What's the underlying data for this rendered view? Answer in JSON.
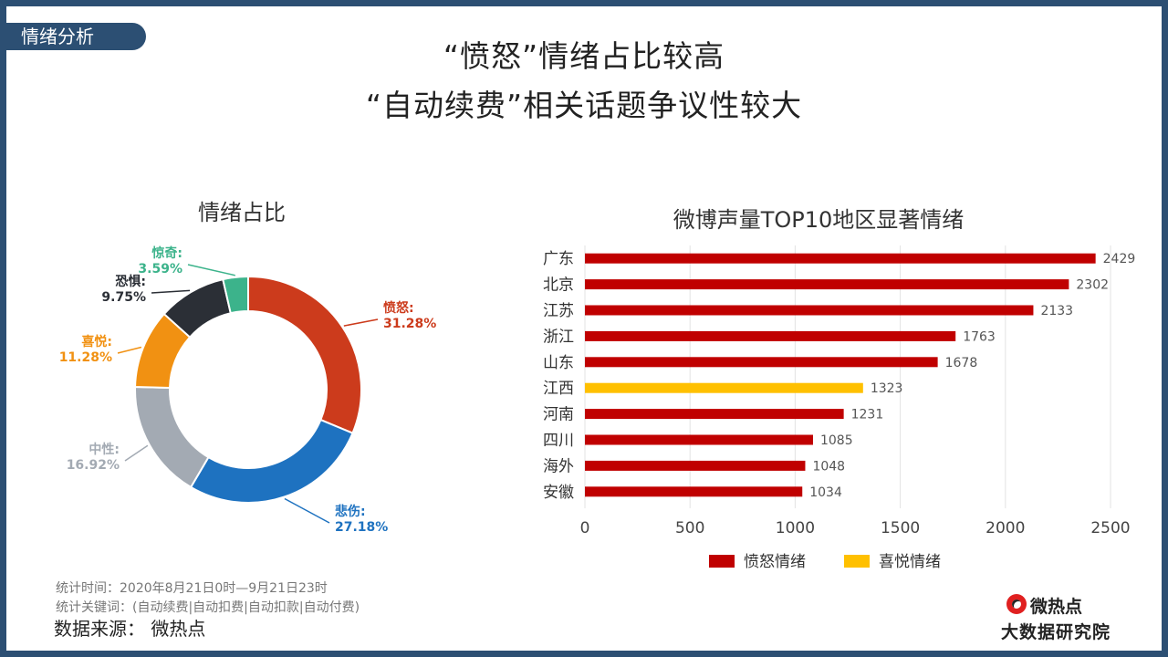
{
  "section_tag": "情绪分析",
  "headline": {
    "line1": "“愤怒”情绪占比较高",
    "line2": "“自动续费”相关话题争议性较大"
  },
  "chart_data": [
    {
      "type": "pie",
      "title": "情绪占比",
      "slices": [
        {
          "label": "愤怒:",
          "value": 31.28,
          "pct": "31.28%",
          "color": "#cc3b1c"
        },
        {
          "label": "悲伤:",
          "value": 27.18,
          "pct": "27.18%",
          "color": "#1e72c0"
        },
        {
          "label": "中性:",
          "value": 16.92,
          "pct": "16.92%",
          "color": "#a3aab3"
        },
        {
          "label": "喜悦:",
          "value": 11.28,
          "pct": "11.28%",
          "color": "#f19112"
        },
        {
          "label": "恐惧:",
          "value": 9.75,
          "pct": "9.75%",
          "color": "#2b2f36"
        },
        {
          "label": "惊奇:",
          "value": 3.59,
          "pct": "3.59%",
          "color": "#3cb38b"
        }
      ]
    },
    {
      "type": "bar",
      "orientation": "horizontal",
      "title": "微博声量TOP10地区显著情绪",
      "categories": [
        "广东",
        "北京",
        "江苏",
        "浙江",
        "山东",
        "江西",
        "河南",
        "四川",
        "海外",
        "安徽"
      ],
      "values": [
        2429,
        2302,
        2133,
        1763,
        1678,
        1323,
        1231,
        1085,
        1048,
        1034
      ],
      "emotion": [
        "愤怒情绪",
        "愤怒情绪",
        "愤怒情绪",
        "愤怒情绪",
        "愤怒情绪",
        "喜悦情绪",
        "愤怒情绪",
        "愤怒情绪",
        "愤怒情绪",
        "愤怒情绪"
      ],
      "xlim": [
        0,
        2500
      ],
      "xticks": [
        0,
        500,
        1000,
        1500,
        2000,
        2500
      ],
      "grid": true,
      "legend_position": "bottom",
      "legend": [
        {
          "name": "愤怒情绪",
          "color": "#c00000"
        },
        {
          "name": "喜悦情绪",
          "color": "#ffc000"
        }
      ]
    }
  ],
  "footer": {
    "stat_time": "统计时间：2020年8月21日0时—9月21日23时",
    "keywords": "统计关键词：(自动续费|自动扣费|自动扣款|自动付费)",
    "source": "数据来源：  微热点",
    "logo_top": "微热点",
    "logo_bottom": "大数据研究院"
  }
}
